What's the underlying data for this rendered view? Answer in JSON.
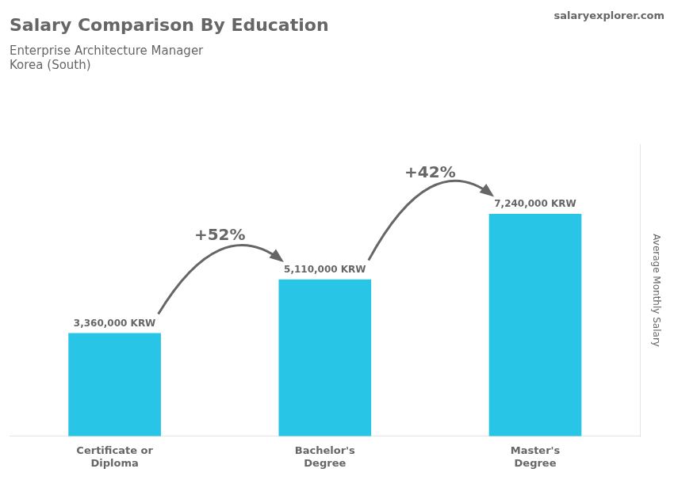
{
  "chart_data": {
    "type": "bar",
    "title": "Salary Comparison By Education",
    "subtitle": [
      "Enterprise Architecture Manager",
      "Korea (South)"
    ],
    "ylabel": "Average Monthly Salary",
    "categories": [
      "Certificate or\nDiploma",
      "Bachelor's\nDegree",
      "Master's\nDegree"
    ],
    "values": [
      3360000,
      5110000,
      7240000
    ],
    "value_labels": [
      "3,360,000 KRW",
      "5,110,000 KRW",
      "7,240,000 KRW"
    ],
    "data_labels": true,
    "color": "#29c5e6",
    "ylim": [
      0,
      9500000
    ],
    "tick_labels": "x",
    "grid": false,
    "annotations": [
      {
        "text": "+52%",
        "from": 0,
        "to": 1
      },
      {
        "text": "+42%",
        "from": 1,
        "to": 2
      },
      {
        "text": "salaryexplorer.com"
      }
    ]
  }
}
